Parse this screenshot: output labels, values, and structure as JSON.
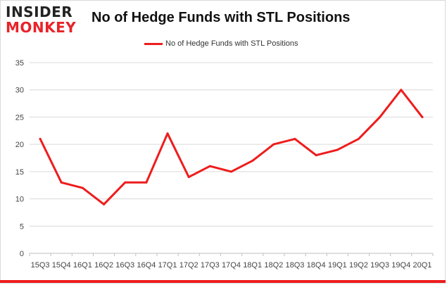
{
  "logo": {
    "line1": "INSIDER",
    "line2": "MONKEY"
  },
  "colors": {
    "series": "#ee1c1c",
    "grid": "#d9d9d9",
    "brand_red": "#e8232a"
  },
  "chart_data": {
    "type": "line",
    "title": "No of Hedge Funds with STL Positions",
    "xlabel": "",
    "ylabel": "",
    "legend_position": "top-center",
    "grid": true,
    "ylim": [
      0,
      35
    ],
    "yticks": [
      0,
      5,
      10,
      15,
      20,
      25,
      30,
      35
    ],
    "categories": [
      "15Q3",
      "15Q4",
      "16Q1",
      "16Q2",
      "16Q3",
      "16Q4",
      "17Q1",
      "17Q2",
      "17Q3",
      "17Q4",
      "18Q1",
      "18Q2",
      "18Q3",
      "18Q4",
      "19Q1",
      "19Q2",
      "19Q3",
      "19Q4",
      "20Q1"
    ],
    "series": [
      {
        "name": "No of Hedge Funds with STL Positions",
        "values": [
          21,
          13,
          12,
          9,
          13,
          13,
          22,
          14,
          16,
          15,
          17,
          20,
          21,
          18,
          19,
          21,
          25,
          30,
          25
        ]
      }
    ]
  }
}
